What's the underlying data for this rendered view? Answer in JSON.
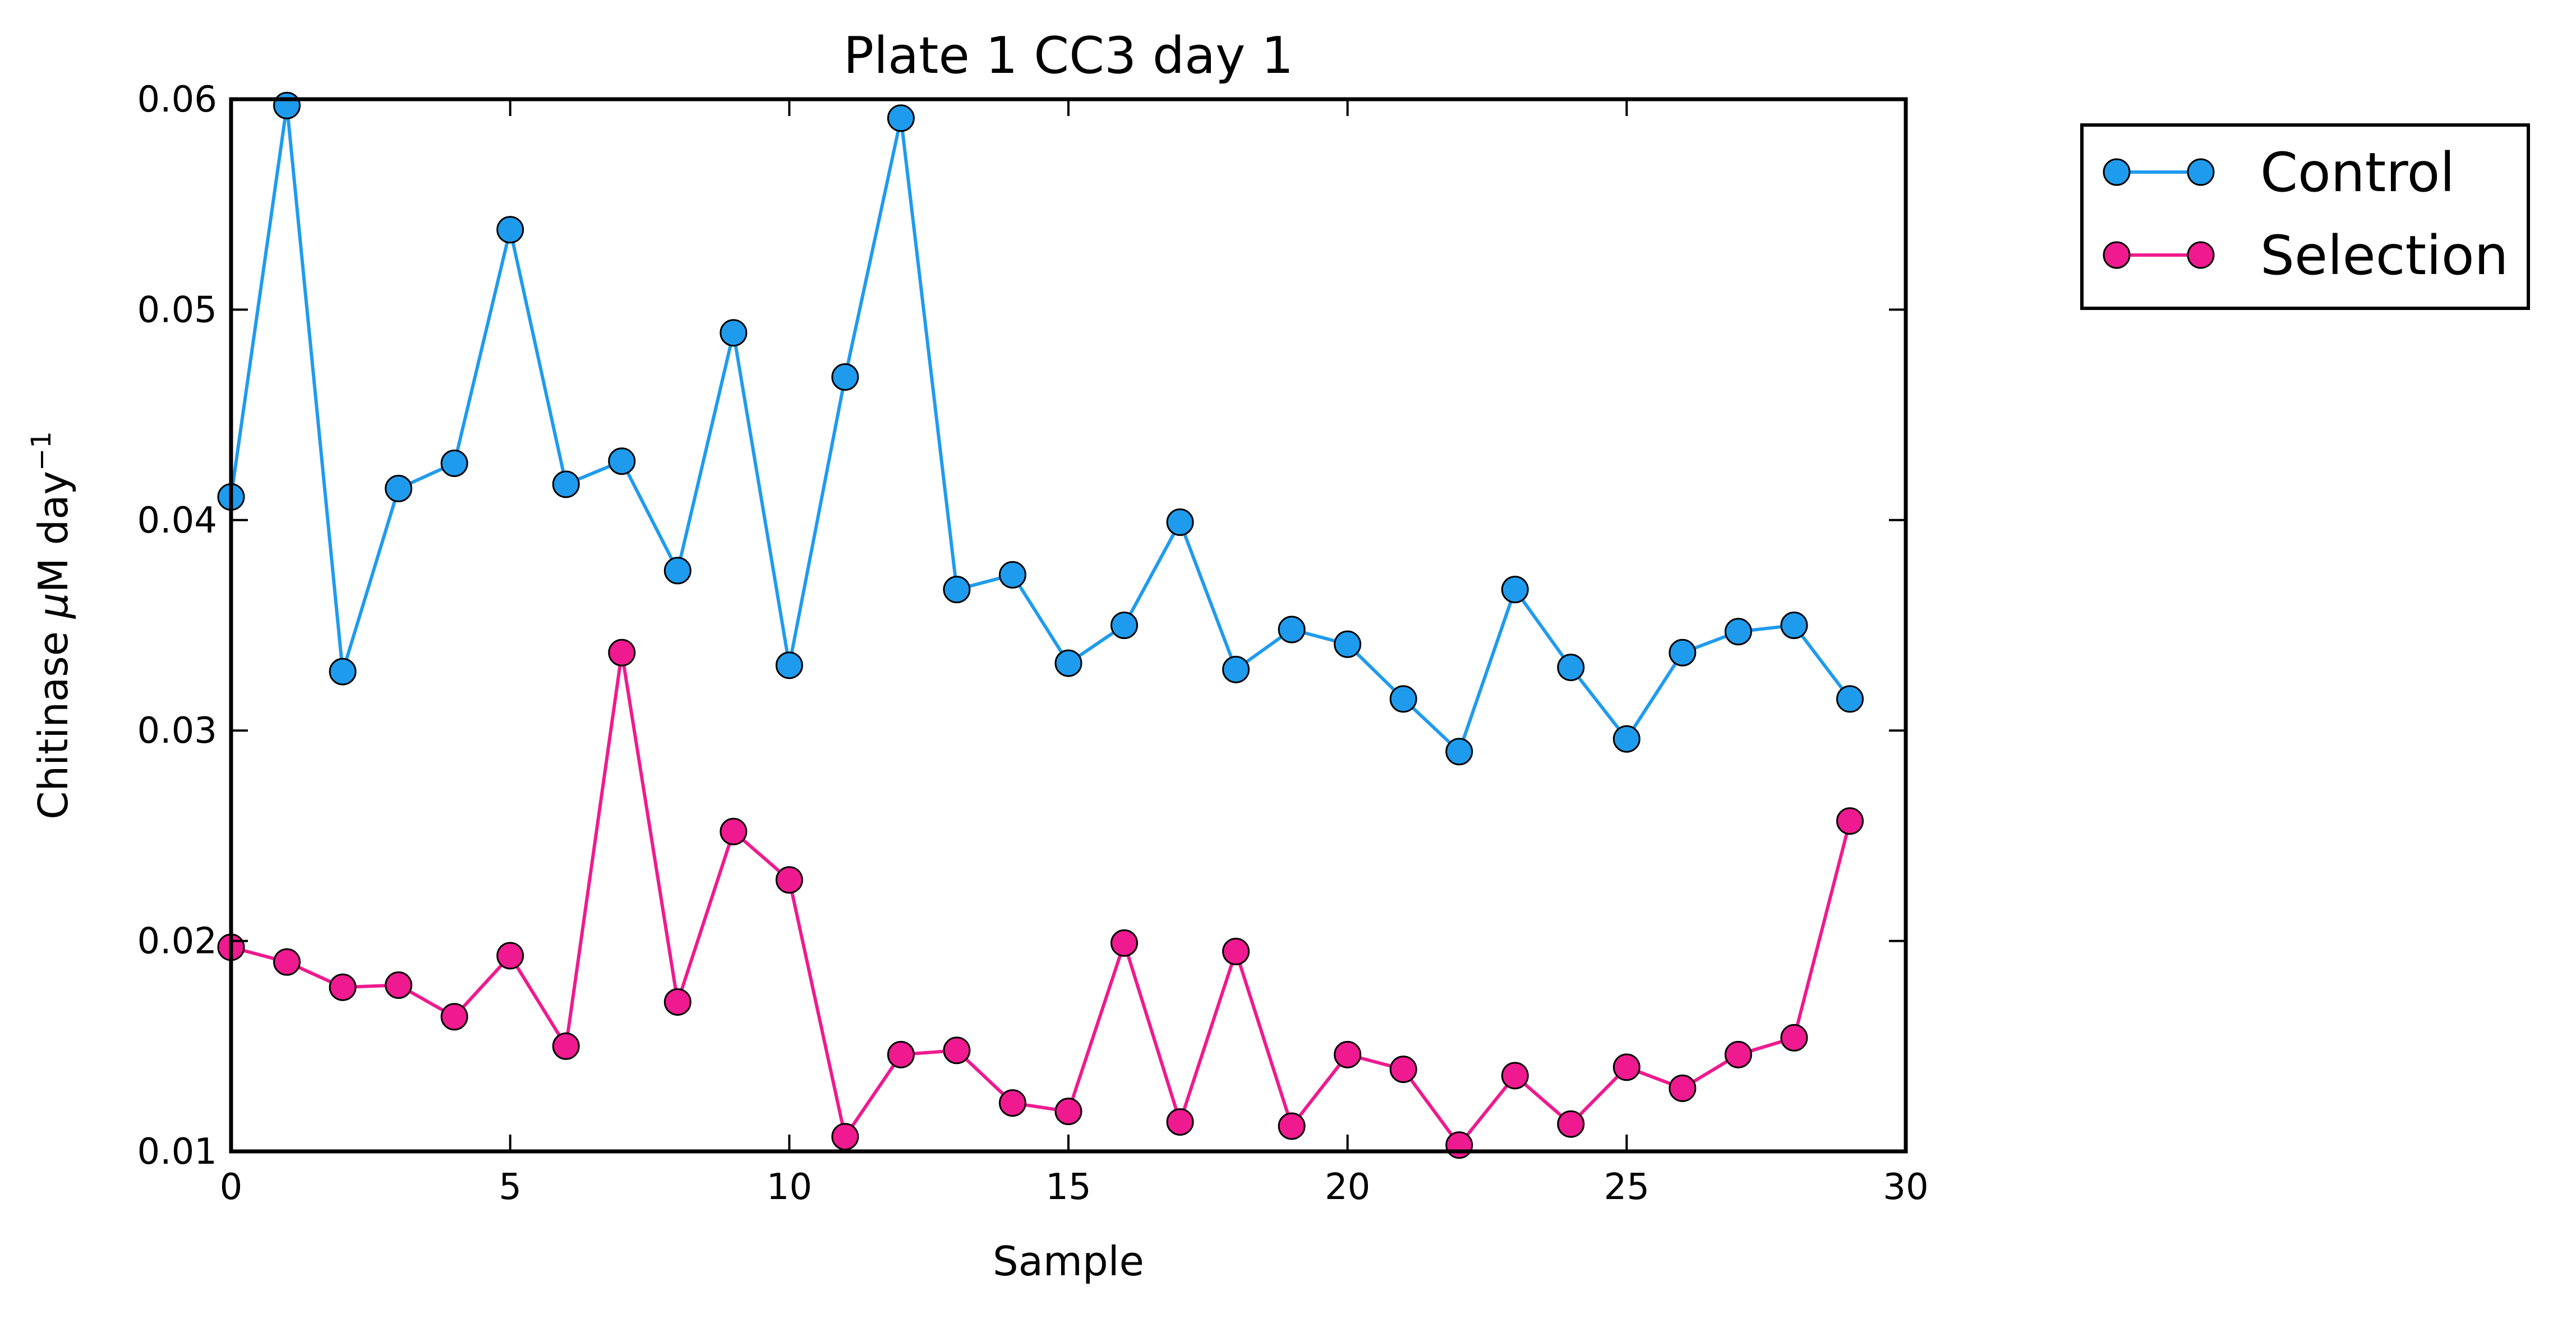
{
  "chart_data": {
    "type": "line",
    "title": "Plate 1 CC3 day 1",
    "xlabel": "Sample",
    "ylabel_main": "Chitinase ",
    "ylabel_mu": "μ",
    "ylabel_rest": "M day",
    "ylabel_sup": "−1",
    "xlim": [
      0,
      30
    ],
    "ylim": [
      0.01,
      0.06
    ],
    "xticks": [
      0,
      5,
      10,
      15,
      20,
      25,
      30
    ],
    "xtick_labels": [
      "0",
      "5",
      "10",
      "15",
      "20",
      "25",
      "30"
    ],
    "yticks": [
      0.01,
      0.02,
      0.03,
      0.04,
      0.05,
      0.06
    ],
    "ytick_labels": [
      "0.01",
      "0.02",
      "0.03",
      "0.04",
      "0.05",
      "0.06"
    ],
    "grid": false,
    "legend": "outside-top-right",
    "x": [
      0,
      1,
      2,
      3,
      4,
      5,
      6,
      7,
      8,
      9,
      10,
      11,
      12,
      13,
      14,
      15,
      16,
      17,
      18,
      19,
      20,
      21,
      22,
      23,
      24,
      25,
      26,
      27,
      28,
      29
    ],
    "series": [
      {
        "name": "Control",
        "color": "#1f9bee",
        "values": [
          0.0411,
          0.0597,
          0.0328,
          0.0415,
          0.0427,
          0.0538,
          0.0417,
          0.0428,
          0.0376,
          0.0489,
          0.0331,
          0.0468,
          0.0591,
          0.0367,
          0.0374,
          0.0332,
          0.035,
          0.0399,
          0.0329,
          0.0348,
          0.0341,
          0.0315,
          0.029,
          0.0367,
          0.033,
          0.0296,
          0.0337,
          0.0347,
          0.035,
          0.0315
        ]
      },
      {
        "name": "Selection",
        "color": "#ef1a8f",
        "values": [
          0.0197,
          0.019,
          0.0178,
          0.0179,
          0.0164,
          0.0193,
          0.015,
          0.0337,
          0.0171,
          0.0252,
          0.0229,
          0.0107,
          0.0146,
          0.0148,
          0.0123,
          0.0119,
          0.0199,
          0.0114,
          0.0195,
          0.0112,
          0.0146,
          0.0139,
          0.0103,
          0.0136,
          0.0113,
          0.014,
          0.013,
          0.0146,
          0.0154,
          0.0257
        ]
      }
    ]
  }
}
